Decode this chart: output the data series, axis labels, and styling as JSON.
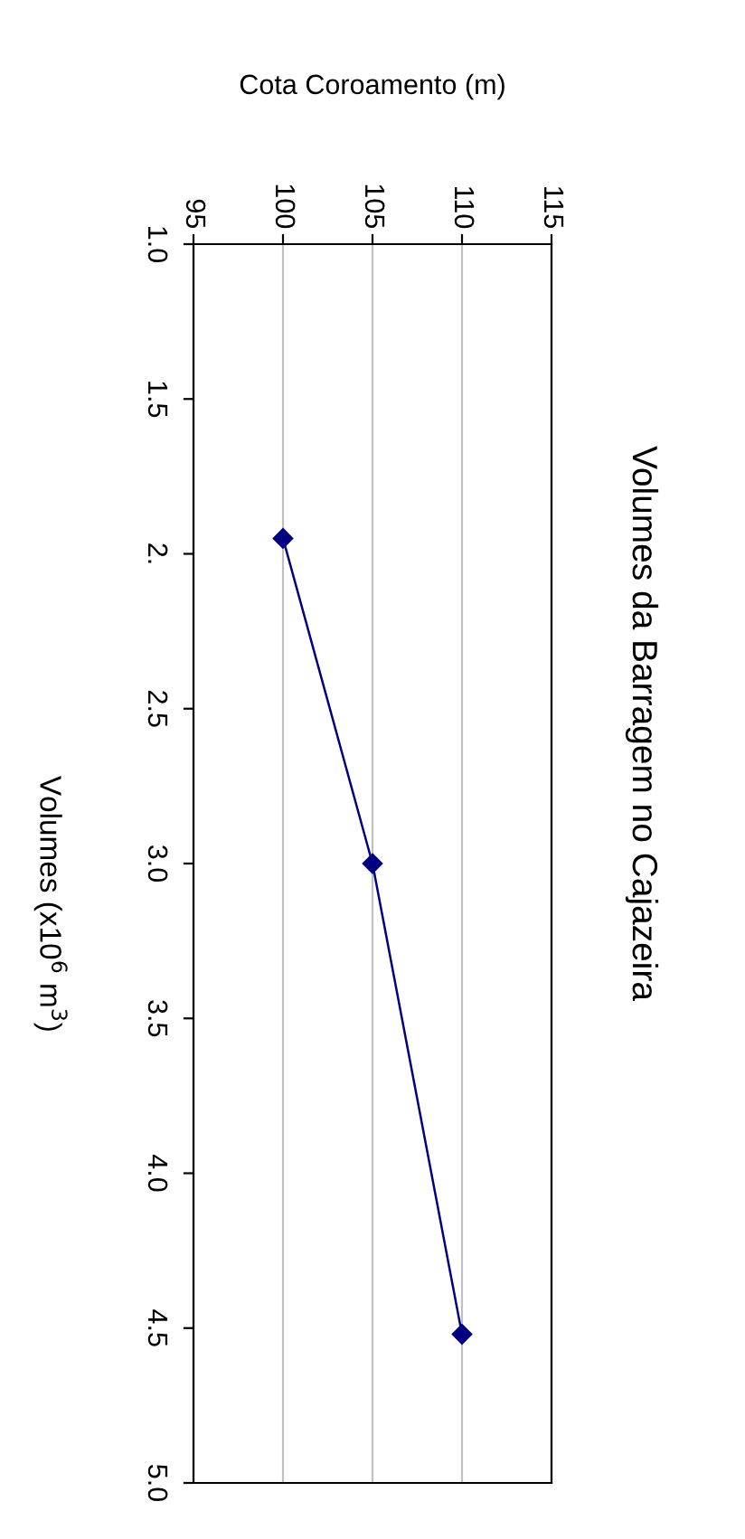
{
  "chart_data": {
    "type": "line",
    "title": "Volumes da Barragem no Cajazeira",
    "xlabel": "Cota Coroamento (m)",
    "ylabel": "Volumes (x10$^{6}$ m$^{3}$)",
    "x": [
      100,
      105,
      110
    ],
    "series": [
      {
        "color": "#000080",
        "values": [
          1.95,
          3.0,
          4.52
        ]
      }
    ],
    "xlim": [
      95,
      115
    ],
    "xticks": [
      95,
      100,
      105,
      110,
      115
    ],
    "ylim": [
      5.0,
      1.0
    ],
    "yticks": [
      {
        "value": 1.0,
        "label": "1.0"
      },
      1.5,
      {
        "value": 2,
        "label": "2."
      },
      2.5,
      {
        "value": 3.0,
        "label": "3.0"
      },
      3.5,
      {
        "value": 4.0,
        "label": "4.0"
      },
      4.5,
      {
        "value": 5.0,
        "label": "5.0"
      }
    ],
    "grid": "x",
    "marker": "diamond",
    "line_style": "solid"
  }
}
